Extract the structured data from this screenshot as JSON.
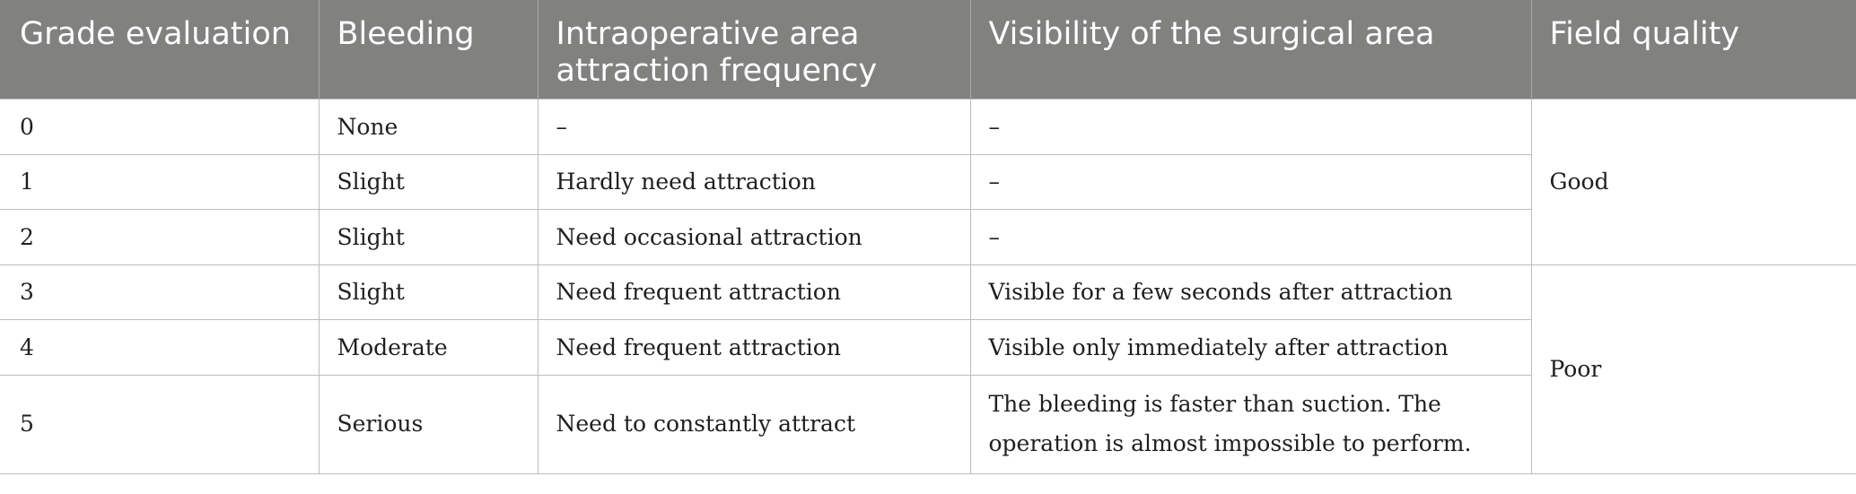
{
  "table": {
    "headers": [
      "Grade evaluation",
      "Bleeding",
      "Intraoperative area attraction frequency",
      "Visibility of the surgical area",
      "Field quality"
    ],
    "rows": [
      {
        "grade": "0",
        "bleeding": "None",
        "frequency": "–",
        "visibility": "–"
      },
      {
        "grade": "1",
        "bleeding": "Slight",
        "frequency": "Hardly need attraction",
        "visibility": "–"
      },
      {
        "grade": "2",
        "bleeding": "Slight",
        "frequency": "Need occasional attraction",
        "visibility": "–"
      },
      {
        "grade": "3",
        "bleeding": "Slight",
        "frequency": "Need frequent attraction",
        "visibility": "Visible for a few seconds after attraction"
      },
      {
        "grade": "4",
        "bleeding": "Moderate",
        "frequency": "Need frequent attraction",
        "visibility": "Visible only immediately after attraction"
      },
      {
        "grade": "5",
        "bleeding": "Serious",
        "frequency": "Need to constantly attract",
        "visibility": "The bleeding is faster than suction. The operation is almost impossible to perform."
      }
    ],
    "field_quality": {
      "good": "Good",
      "poor": "Poor"
    }
  }
}
